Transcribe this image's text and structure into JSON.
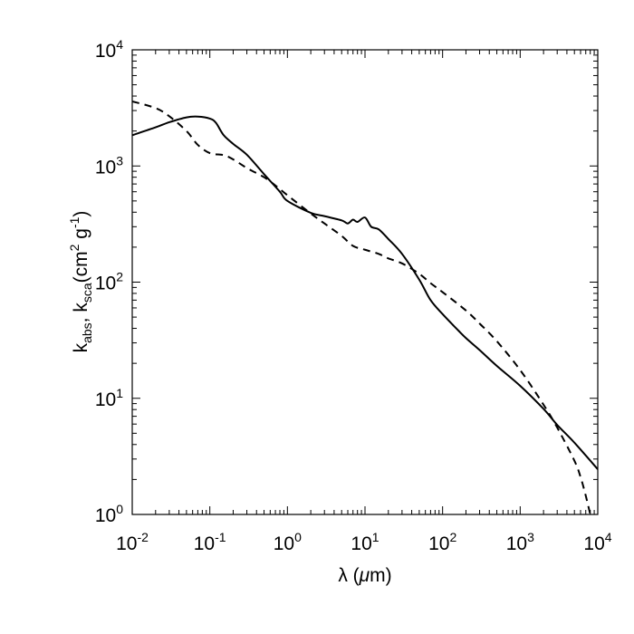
{
  "chart_data": {
    "type": "line",
    "title": "",
    "xlabel": "λ (μm)",
    "ylabel": "kabs, ksca (cm2 g-1)",
    "ylabel_parts": {
      "k1": "k",
      "sub1": "abs",
      "sep": ", k",
      "sub2": "sca",
      "open": "(cm",
      "sup1": "2",
      "mid": " g",
      "sup2": "-1",
      "close": ")"
    },
    "xlabel_parts": {
      "lambda": "λ",
      "open": " (",
      "mu": "μ",
      "rest": "m)"
    },
    "xscale": "log",
    "yscale": "log",
    "xlim": [
      0.01,
      10000
    ],
    "ylim": [
      1,
      10000
    ],
    "grid": false,
    "x_ticks": [
      {
        "base": "10",
        "exp": "-2"
      },
      {
        "base": "10",
        "exp": "-1"
      },
      {
        "base": "10",
        "exp": "0"
      },
      {
        "base": "10",
        "exp": "1"
      },
      {
        "base": "10",
        "exp": "2"
      },
      {
        "base": "10",
        "exp": "3"
      },
      {
        "base": "10",
        "exp": "4"
      }
    ],
    "y_ticks": [
      {
        "base": "10",
        "exp": "0"
      },
      {
        "base": "10",
        "exp": "1"
      },
      {
        "base": "10",
        "exp": "2"
      },
      {
        "base": "10",
        "exp": "3"
      },
      {
        "base": "10",
        "exp": "4"
      }
    ],
    "series": [
      {
        "name": "k_abs",
        "style": "solid",
        "x": [
          0.01,
          0.02,
          0.03,
          0.05,
          0.07,
          0.1,
          0.12,
          0.15,
          0.2,
          0.3,
          0.5,
          0.8,
          1,
          2,
          3,
          5,
          6,
          7,
          8,
          10,
          12,
          15,
          20,
          30,
          50,
          70,
          100,
          150,
          200,
          300,
          500,
          1000,
          2000,
          3000,
          5000,
          10000
        ],
        "y": [
          1840,
          2150,
          2380,
          2620,
          2660,
          2560,
          2350,
          1850,
          1550,
          1250,
          850,
          600,
          500,
          395,
          370,
          340,
          320,
          345,
          330,
          360,
          300,
          285,
          235,
          175,
          105,
          70,
          53,
          40,
          33,
          26,
          19,
          12.8,
          8.1,
          5.9,
          4.15,
          2.45
        ]
      },
      {
        "name": "k_sca",
        "style": "dashed",
        "x": [
          0.01,
          0.02,
          0.03,
          0.05,
          0.07,
          0.1,
          0.15,
          0.2,
          0.3,
          0.5,
          0.7,
          1,
          2,
          3,
          5,
          7,
          10,
          15,
          20,
          30,
          50,
          70,
          100,
          200,
          300,
          500,
          1000,
          2000,
          3000,
          5000,
          6000,
          7000,
          8000
        ],
        "y": [
          3600,
          3150,
          2680,
          2000,
          1520,
          1290,
          1240,
          1140,
          960,
          800,
          680,
          560,
          390,
          320,
          250,
          205,
          190,
          175,
          160,
          145,
          118,
          98,
          82,
          57,
          44,
          31,
          17.5,
          8.8,
          5.6,
          2.9,
          2.1,
          1.45,
          1.0
        ]
      }
    ]
  }
}
